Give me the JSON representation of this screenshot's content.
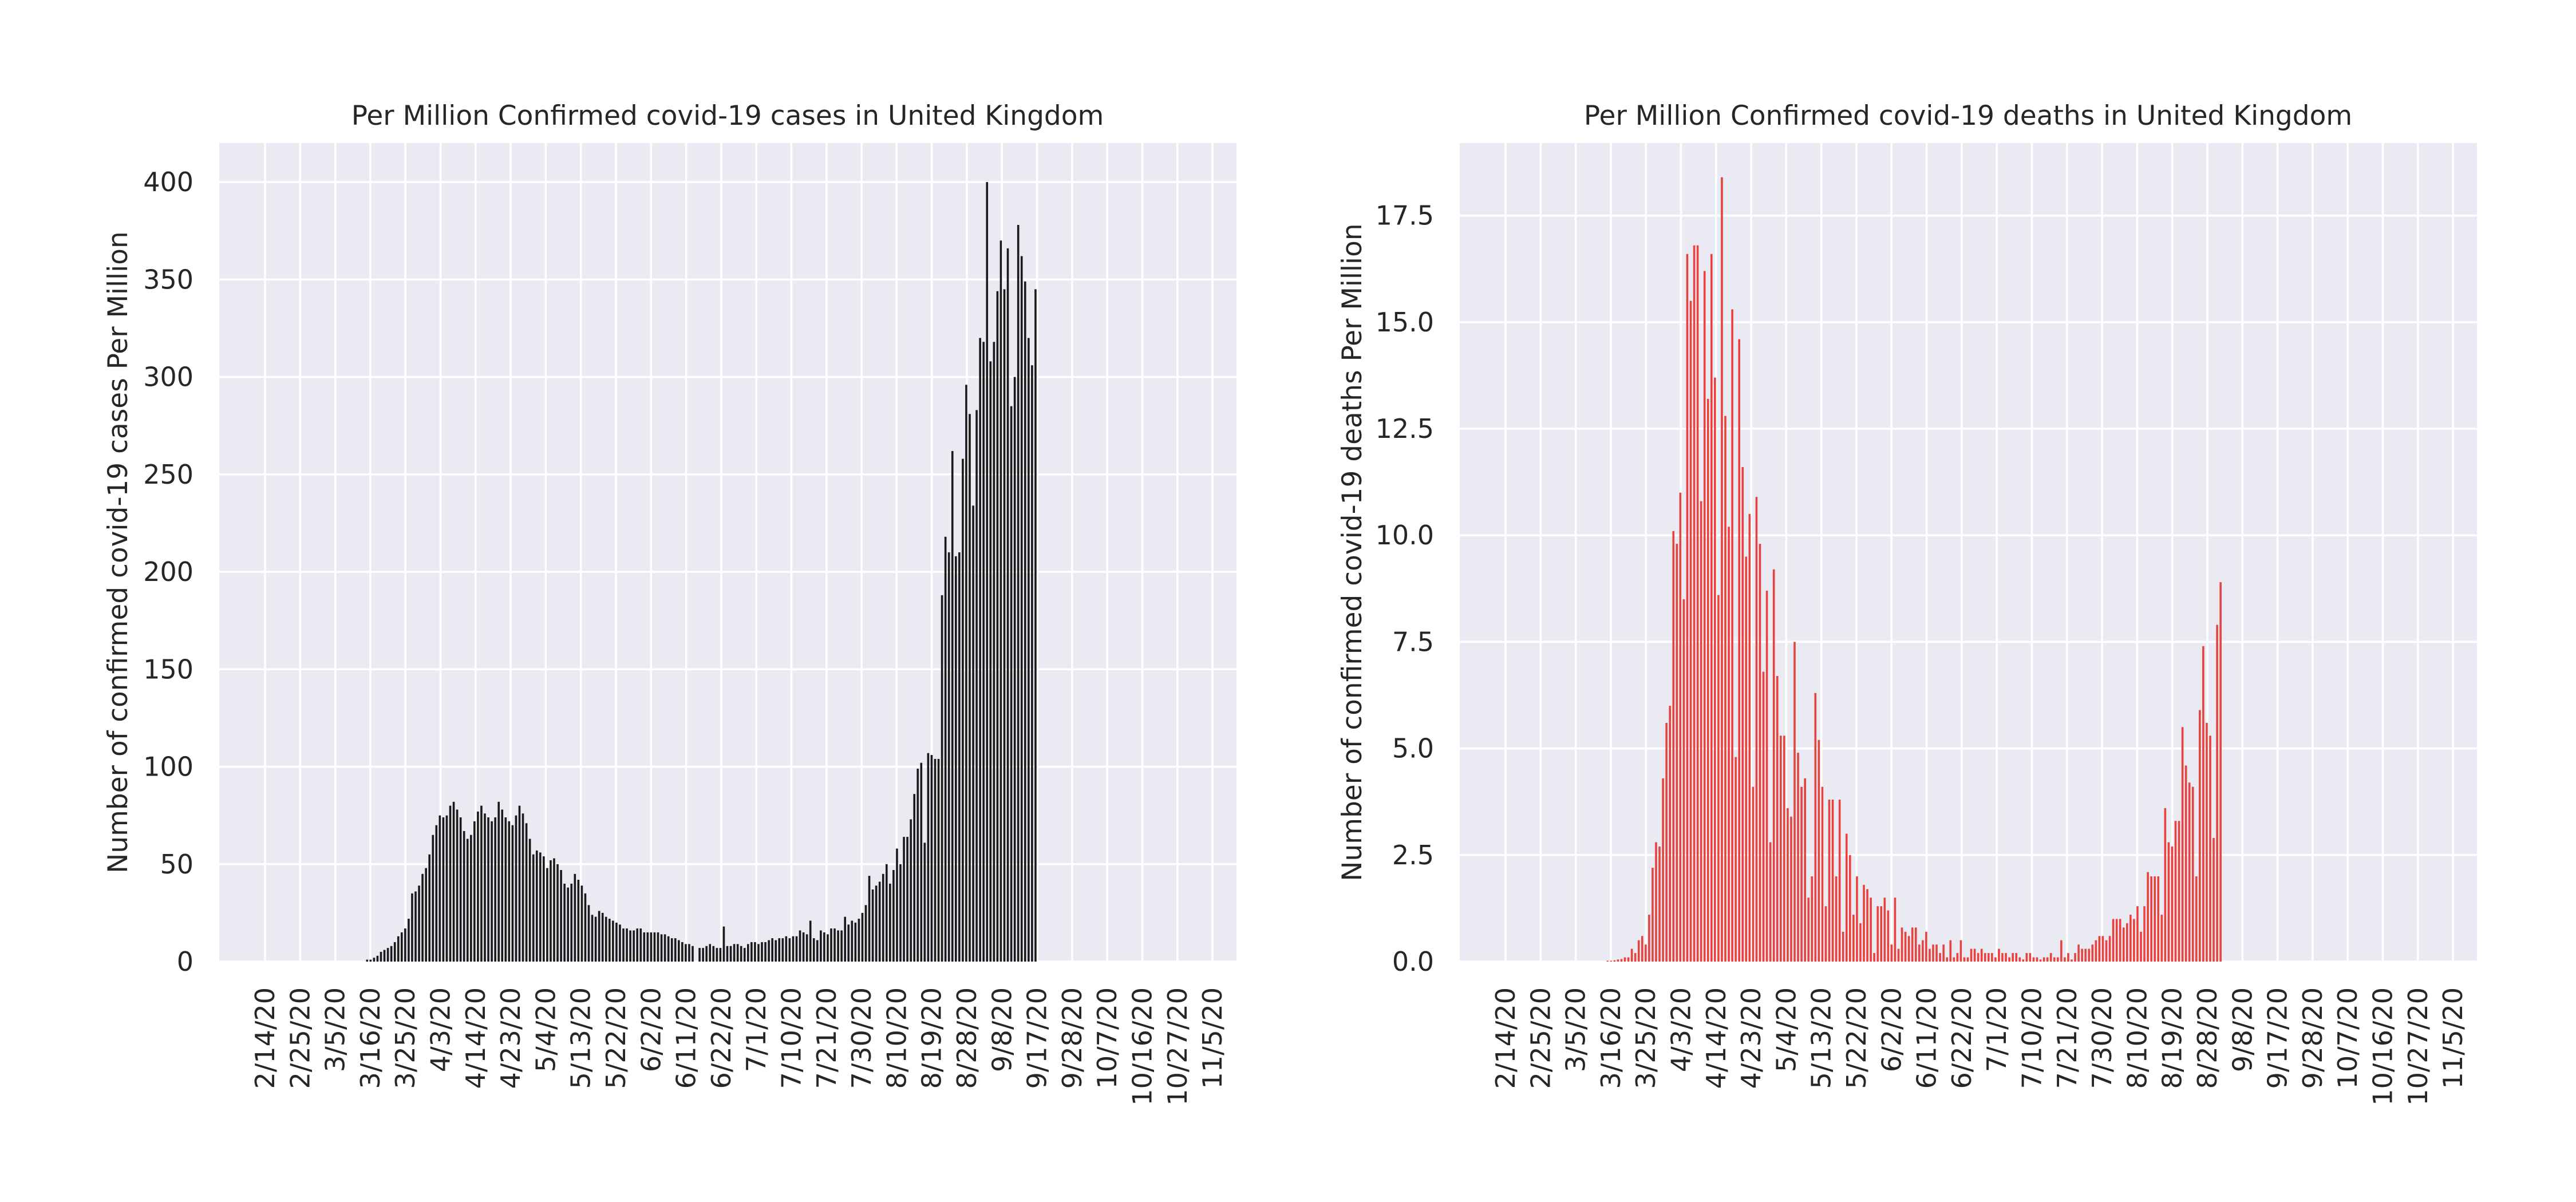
{
  "chart_data": [
    {
      "type": "bar",
      "title": "Per Million Confirmed covid-19 cases in United Kingdom",
      "xlabel": "",
      "ylabel": "Number of confirmed covid-19 cases Per Million",
      "ylim": [
        0,
        420
      ],
      "yticks": [
        0,
        50,
        100,
        150,
        200,
        250,
        300,
        350,
        400
      ],
      "x_tick_labels": [
        "2/14/20",
        "2/25/20",
        "3/5/20",
        "3/16/20",
        "3/25/20",
        "4/3/20",
        "4/14/20",
        "4/23/20",
        "5/4/20",
        "5/13/20",
        "5/22/20",
        "6/2/20",
        "6/11/20",
        "6/22/20",
        "7/1/20",
        "7/10/20",
        "7/21/20",
        "7/30/20",
        "8/10/20",
        "8/19/20",
        "8/28/20",
        "9/8/20",
        "9/17/20",
        "9/28/20",
        "10/7/20",
        "10/16/20",
        "10/27/20",
        "11/5/20"
      ],
      "bar_color": "#1a1a1a",
      "grid": true,
      "values": [
        0,
        0,
        0,
        0,
        0,
        0,
        0,
        0,
        0,
        0,
        0,
        0,
        0,
        0,
        0,
        0,
        0,
        0,
        0,
        0,
        0,
        0,
        0,
        0,
        0,
        0,
        0,
        0,
        0,
        0,
        1,
        1,
        2,
        3,
        5,
        6,
        7,
        8,
        10,
        13,
        15,
        17,
        22,
        35,
        36,
        39,
        45,
        48,
        55,
        65,
        70,
        75,
        74,
        75,
        80,
        82,
        78,
        74,
        67,
        63,
        65,
        72,
        77,
        80,
        76,
        74,
        72,
        74,
        82,
        78,
        74,
        72,
        70,
        75,
        80,
        76,
        71,
        63,
        55,
        57,
        56,
        54,
        48,
        52,
        53,
        50,
        47,
        40,
        38,
        40,
        45,
        42,
        39,
        35,
        29,
        24,
        23,
        26,
        25,
        23,
        22,
        21,
        20,
        19,
        17,
        17,
        16,
        16,
        17,
        17,
        15,
        15,
        15,
        15,
        15,
        14,
        14,
        13,
        12,
        12,
        11,
        10,
        9,
        9,
        8,
        0,
        7,
        7,
        8,
        9,
        8,
        7,
        7,
        18,
        8,
        8,
        9,
        9,
        8,
        7,
        9,
        10,
        10,
        9,
        10,
        10,
        11,
        12,
        11,
        12,
        12,
        13,
        12,
        13,
        13,
        16,
        15,
        14,
        21,
        12,
        11,
        16,
        15,
        14,
        17,
        17,
        16,
        16,
        23,
        19,
        21,
        20,
        22,
        25,
        29,
        44,
        37,
        39,
        41,
        45,
        50,
        40,
        47,
        58,
        50,
        64,
        64,
        73,
        86,
        99,
        102,
        61,
        107,
        106,
        104,
        104,
        188,
        218,
        210,
        262,
        208,
        210,
        258,
        296,
        281,
        234,
        283,
        320,
        318,
        400,
        308,
        318,
        344,
        370,
        345,
        366,
        285,
        300,
        378,
        362,
        349,
        320,
        306,
        345
      ]
    },
    {
      "type": "bar",
      "title": "Per Million Confirmed covid-19 deaths in United Kingdom",
      "xlabel": "",
      "ylabel": "Number of confirmed covid-19 deaths Per Million",
      "ylim": [
        0,
        19.2
      ],
      "yticks": [
        0.0,
        2.5,
        5.0,
        7.5,
        10.0,
        12.5,
        15.0,
        17.5
      ],
      "x_tick_labels": [
        "2/14/20",
        "2/25/20",
        "3/5/20",
        "3/16/20",
        "3/25/20",
        "4/3/20",
        "4/14/20",
        "4/23/20",
        "5/4/20",
        "5/13/20",
        "5/22/20",
        "6/2/20",
        "6/11/20",
        "6/22/20",
        "7/1/20",
        "7/10/20",
        "7/21/20",
        "7/30/20",
        "8/10/20",
        "8/19/20",
        "8/28/20",
        "9/8/20",
        "9/17/20",
        "9/28/20",
        "10/7/20",
        "10/16/20",
        "10/27/20",
        "11/5/20"
      ],
      "bar_color": "#e8423f",
      "grid": true,
      "values": [
        0,
        0,
        0,
        0,
        0,
        0,
        0,
        0,
        0,
        0,
        0,
        0,
        0,
        0,
        0,
        0,
        0,
        0,
        0,
        0,
        0,
        0,
        0,
        0,
        0,
        0,
        0,
        0,
        0,
        0,
        0.02,
        0.02,
        0.03,
        0.05,
        0.06,
        0.1,
        0.1,
        0.3,
        0.2,
        0.5,
        0.6,
        0.4,
        1.1,
        2.2,
        2.8,
        2.7,
        4.3,
        5.6,
        6.0,
        10.1,
        9.8,
        11.0,
        8.5,
        16.6,
        15.5,
        16.8,
        16.8,
        10.8,
        16.2,
        13.2,
        16.6,
        13.7,
        8.6,
        18.4,
        12.8,
        10.2,
        15.3,
        4.8,
        14.6,
        11.6,
        9.5,
        10.5,
        4.1,
        10.9,
        9.8,
        6.8,
        8.7,
        2.8,
        9.2,
        6.7,
        5.3,
        5.3,
        3.6,
        3.4,
        7.5,
        4.9,
        4.1,
        4.3,
        1.5,
        2.0,
        6.3,
        5.2,
        4.1,
        1.3,
        3.8,
        3.8,
        2.0,
        3.8,
        0.7,
        3.0,
        2.5,
        1.1,
        2.0,
        0.9,
        1.8,
        1.7,
        1.5,
        0.2,
        1.3,
        1.3,
        1.5,
        1.2,
        0.4,
        1.5,
        0.3,
        0.8,
        0.7,
        0.6,
        0.8,
        0.8,
        0.4,
        0.5,
        0.7,
        0.3,
        0.4,
        0.4,
        0.2,
        0.4,
        0.1,
        0.5,
        0.1,
        0.2,
        0.5,
        0.1,
        0.1,
        0.3,
        0.3,
        0.2,
        0.3,
        0.2,
        0.2,
        0.2,
        0.1,
        0.3,
        0.2,
        0.2,
        0.1,
        0.2,
        0.2,
        0.1,
        0.05,
        0.2,
        0.2,
        0.1,
        0.1,
        0.05,
        0.1,
        0.1,
        0.2,
        0.1,
        0.1,
        0.5,
        0.1,
        0.2,
        0.05,
        0.2,
        0.4,
        0.3,
        0.3,
        0.3,
        0.4,
        0.5,
        0.6,
        0.6,
        0.5,
        0.6,
        1.0,
        1.0,
        1.0,
        0.8,
        0.9,
        1.1,
        1.0,
        1.3,
        0.7,
        1.3,
        2.1,
        2.0,
        2.0,
        2.0,
        1.1,
        3.6,
        2.8,
        2.7,
        3.3,
        3.3,
        5.5,
        4.6,
        4.2,
        4.1,
        2.0,
        5.9,
        7.4,
        5.6,
        5.3,
        2.9,
        7.9,
        8.9
      ]
    }
  ]
}
